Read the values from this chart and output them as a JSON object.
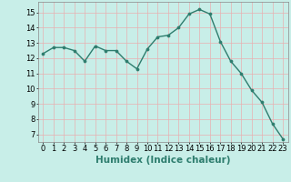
{
  "x": [
    0,
    1,
    2,
    3,
    4,
    5,
    6,
    7,
    8,
    9,
    10,
    11,
    12,
    13,
    14,
    15,
    16,
    17,
    18,
    19,
    20,
    21,
    22,
    23
  ],
  "y": [
    12.3,
    12.7,
    12.7,
    12.5,
    11.8,
    12.8,
    12.5,
    12.5,
    11.8,
    11.3,
    12.6,
    13.4,
    13.5,
    14.0,
    14.9,
    15.2,
    14.9,
    13.1,
    11.8,
    11.0,
    9.9,
    9.1,
    7.7,
    6.7
  ],
  "line_color": "#2e7d6e",
  "marker": "o",
  "markersize": 2.2,
  "linewidth": 1.0,
  "background_color": "#c8eee8",
  "grid_color_minor": "#e8b0b0",
  "grid_color_major": "#d09898",
  "xlabel": "Humidex (Indice chaleur)",
  "xlabel_fontsize": 7.5,
  "xlabel_weight": "bold",
  "xlim": [
    -0.5,
    23.5
  ],
  "ylim": [
    6.5,
    15.7
  ],
  "yticks": [
    7,
    8,
    9,
    10,
    11,
    12,
    13,
    14,
    15
  ],
  "xtick_labels": [
    "0",
    "1",
    "2",
    "3",
    "4",
    "5",
    "6",
    "7",
    "8",
    "9",
    "10",
    "11",
    "12",
    "13",
    "14",
    "15",
    "16",
    "17",
    "18",
    "19",
    "20",
    "21",
    "22",
    "23"
  ],
  "tick_fontsize": 6,
  "figure_bg": "#c8eee8"
}
